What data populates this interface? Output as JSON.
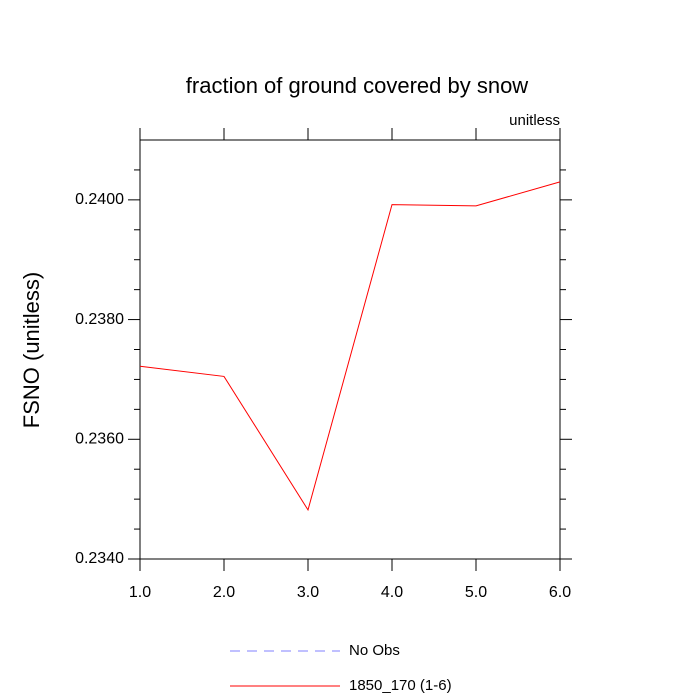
{
  "chart_data": {
    "type": "line",
    "title": "fraction of ground covered by snow",
    "subtitle": "unitless",
    "ylabel": "FSNO  (unitless)",
    "x": [
      1,
      2,
      3,
      4,
      5,
      6
    ],
    "series": [
      {
        "name": "No Obs",
        "color": "#8080ff",
        "dashed": true,
        "values": [
          null,
          null,
          null,
          null,
          null,
          null
        ]
      },
      {
        "name": "1850_170 (1-6)",
        "color": "#ff0000",
        "dashed": false,
        "values": [
          0.23722,
          0.23705,
          0.23482,
          0.23992,
          0.2399,
          0.2403
        ]
      }
    ],
    "xlim": [
      1,
      6
    ],
    "xticks": [
      {
        "value": 1,
        "label": "1.0"
      },
      {
        "value": 2,
        "label": "2.0"
      },
      {
        "value": 3,
        "label": "3.0"
      },
      {
        "value": 4,
        "label": "4.0"
      },
      {
        "value": 5,
        "label": "5.0"
      },
      {
        "value": 6,
        "label": "6.0"
      }
    ],
    "ylim": [
      0.234,
      0.241
    ],
    "yticks": [
      {
        "value": 0.234,
        "label": "0.2340"
      },
      {
        "value": 0.236,
        "label": "0.2360"
      },
      {
        "value": 0.238,
        "label": "0.2380"
      },
      {
        "value": 0.24,
        "label": "0.2400"
      }
    ],
    "yminorticks": [
      0.2345,
      0.235,
      0.2355,
      0.2365,
      0.237,
      0.2375,
      0.2385,
      0.239,
      0.2395,
      0.2405
    ],
    "grid": false
  }
}
